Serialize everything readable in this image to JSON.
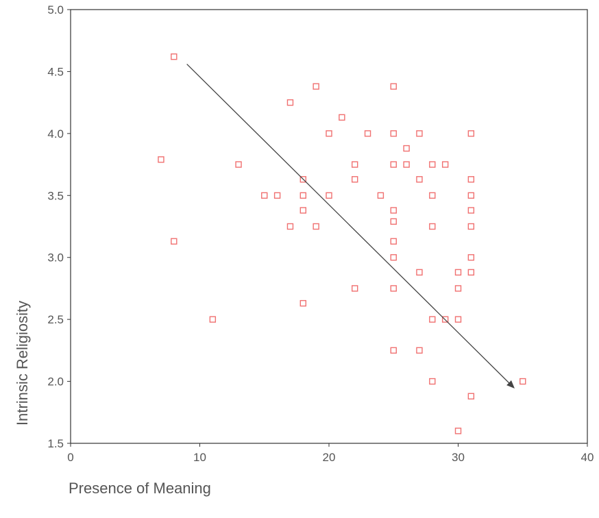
{
  "chart_data": {
    "type": "scatter",
    "title": "",
    "xlabel": "Presence of Meaning",
    "ylabel": "Intrinsic Religiosity",
    "xlim": [
      0,
      40
    ],
    "ylim": [
      1.5,
      5.0
    ],
    "x_ticks": [
      0,
      10,
      20,
      30,
      40
    ],
    "x_tick_labels": [
      "0",
      "10",
      "20",
      "30",
      "40"
    ],
    "y_ticks": [
      1.5,
      2.0,
      2.5,
      3.0,
      3.5,
      4.0,
      4.5,
      5.0
    ],
    "y_tick_labels": [
      "1.5",
      "2.0",
      "2.5",
      "3.0",
      "3.5",
      "4.0",
      "4.5",
      "5.0"
    ],
    "grid": false,
    "marker": "hollow-square",
    "marker_color": "#f07070",
    "arrow_color": "#444444",
    "points": [
      {
        "x": 8,
        "y": 4.62
      },
      {
        "x": 7,
        "y": 3.79
      },
      {
        "x": 8,
        "y": 3.13
      },
      {
        "x": 11,
        "y": 2.5
      },
      {
        "x": 13,
        "y": 3.75
      },
      {
        "x": 15,
        "y": 3.5
      },
      {
        "x": 16,
        "y": 3.5
      },
      {
        "x": 17,
        "y": 4.25
      },
      {
        "x": 17,
        "y": 3.25
      },
      {
        "x": 18,
        "y": 3.63
      },
      {
        "x": 18,
        "y": 3.5
      },
      {
        "x": 18,
        "y": 3.38
      },
      {
        "x": 18,
        "y": 2.63
      },
      {
        "x": 19,
        "y": 4.38
      },
      {
        "x": 19,
        "y": 3.25
      },
      {
        "x": 20,
        "y": 4.0
      },
      {
        "x": 20,
        "y": 3.5
      },
      {
        "x": 21,
        "y": 4.13
      },
      {
        "x": 22,
        "y": 3.75
      },
      {
        "x": 22,
        "y": 3.63
      },
      {
        "x": 22,
        "y": 2.75
      },
      {
        "x": 23,
        "y": 4.0
      },
      {
        "x": 24,
        "y": 3.5
      },
      {
        "x": 25,
        "y": 4.38
      },
      {
        "x": 25,
        "y": 4.0
      },
      {
        "x": 25,
        "y": 3.75
      },
      {
        "x": 25,
        "y": 3.38
      },
      {
        "x": 25,
        "y": 3.29
      },
      {
        "x": 25,
        "y": 3.13
      },
      {
        "x": 25,
        "y": 3.0
      },
      {
        "x": 25,
        "y": 2.75
      },
      {
        "x": 25,
        "y": 2.25
      },
      {
        "x": 26,
        "y": 3.88
      },
      {
        "x": 26,
        "y": 3.75
      },
      {
        "x": 27,
        "y": 4.0
      },
      {
        "x": 27,
        "y": 3.63
      },
      {
        "x": 27,
        "y": 2.88
      },
      {
        "x": 27,
        "y": 2.25
      },
      {
        "x": 28,
        "y": 3.75
      },
      {
        "x": 28,
        "y": 3.5
      },
      {
        "x": 28,
        "y": 3.25
      },
      {
        "x": 28,
        "y": 2.5
      },
      {
        "x": 28,
        "y": 2.0
      },
      {
        "x": 29,
        "y": 3.75
      },
      {
        "x": 29,
        "y": 2.5
      },
      {
        "x": 30,
        "y": 2.88
      },
      {
        "x": 30,
        "y": 2.75
      },
      {
        "x": 30,
        "y": 2.5
      },
      {
        "x": 30,
        "y": 1.6
      },
      {
        "x": 31,
        "y": 4.0
      },
      {
        "x": 31,
        "y": 3.63
      },
      {
        "x": 31,
        "y": 3.5
      },
      {
        "x": 31,
        "y": 3.38
      },
      {
        "x": 31,
        "y": 3.25
      },
      {
        "x": 31,
        "y": 3.0
      },
      {
        "x": 31,
        "y": 2.88
      },
      {
        "x": 31,
        "y": 1.88
      },
      {
        "x": 35,
        "y": 2.0
      }
    ],
    "trend_arrow": {
      "from": {
        "x": 9,
        "y": 4.56
      },
      "to": {
        "x": 34.3,
        "y": 1.95
      }
    }
  }
}
